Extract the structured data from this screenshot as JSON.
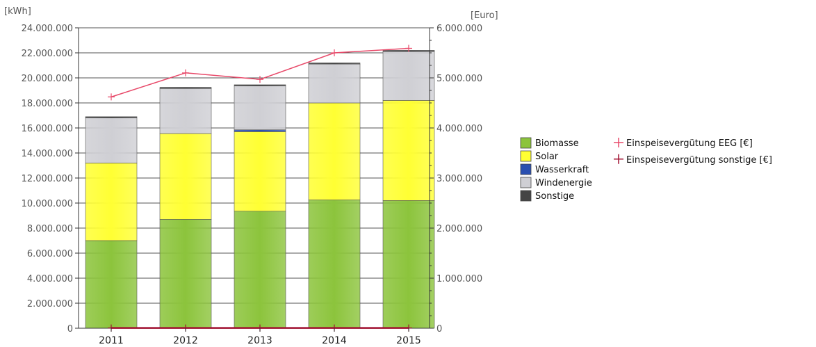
{
  "chart_data": {
    "type": "bar",
    "stacked": true,
    "categories": [
      "2011",
      "2012",
      "2013",
      "2014",
      "2015"
    ],
    "y_left": {
      "unit": "[kWh]",
      "range": [
        0,
        24000000
      ],
      "ticks": [
        0,
        2000000,
        4000000,
        6000000,
        8000000,
        10000000,
        12000000,
        14000000,
        16000000,
        18000000,
        20000000,
        22000000,
        24000000
      ],
      "tick_labels": [
        "0",
        "2.000.000",
        "4.000.000",
        "6.000.000",
        "8.000.000",
        "10.000.000",
        "12.000.000",
        "14.000.000",
        "16.000.000",
        "18.000.000",
        "20.000.000",
        "22.000.000",
        "24.000.000"
      ]
    },
    "y_right": {
      "unit": "[Euro]",
      "range": [
        0,
        6000000
      ],
      "ticks": [
        0,
        1000000,
        2000000,
        3000000,
        4000000,
        5000000,
        6000000
      ],
      "tick_labels": [
        "0",
        "1.000.000",
        "2.000.000",
        "3.000.000",
        "4.000.000",
        "5.000.000",
        "6.000.000"
      ]
    },
    "grid": "horizontal",
    "legend_position": "right",
    "series": [
      {
        "name": "Biomasse",
        "axis": "left",
        "color": "#8cc43c",
        "values": [
          7000000,
          8700000,
          9350000,
          10250000,
          10200000
        ]
      },
      {
        "name": "Solar",
        "axis": "left",
        "color": "#ffff33",
        "values": [
          6200000,
          6850000,
          6350000,
          7750000,
          8000000
        ]
      },
      {
        "name": "Wasserkraft",
        "axis": "left",
        "color": "#2a4fb0",
        "values": [
          0,
          0,
          150000,
          0,
          0
        ]
      },
      {
        "name": "Windenergie",
        "axis": "left",
        "color": "#cfcfd4",
        "values": [
          3600000,
          3600000,
          3500000,
          3100000,
          3900000
        ]
      },
      {
        "name": "Sonstige",
        "axis": "left",
        "color": "#444444",
        "values": [
          100000,
          100000,
          100000,
          100000,
          100000
        ]
      }
    ],
    "line_series": [
      {
        "name": "Einspeisevergütung EEG [€]",
        "axis": "right",
        "color": "#e84a6a",
        "values": [
          4620000,
          5100000,
          4970000,
          5500000,
          5590000
        ]
      },
      {
        "name": "Einspeisevergütung sonstige [€]",
        "axis": "right",
        "color": "#a01030",
        "values": [
          5000,
          5000,
          5000,
          5000,
          5000
        ]
      }
    ]
  }
}
